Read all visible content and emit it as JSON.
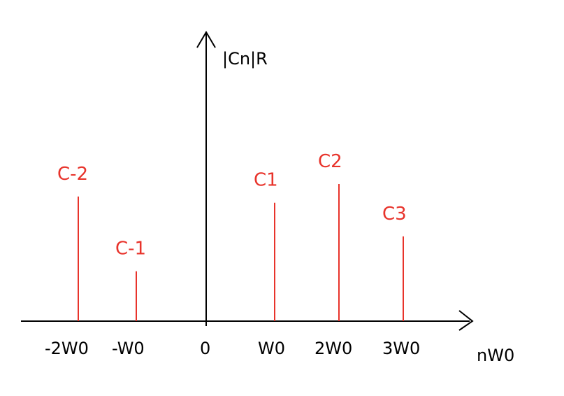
{
  "colors": {
    "axis": "#000000",
    "lines": "#e8332b"
  },
  "y_axis_label": "|Cn|R",
  "x_axis_label": "nW0",
  "chart_data": {
    "type": "bar",
    "title": "",
    "xlabel": "nW0",
    "ylabel": "|Cn|R",
    "categories": [
      "-2W0",
      "-W0",
      "0",
      "W0",
      "2W0",
      "3W0"
    ],
    "tick_labels": [
      "-2W0",
      "-W0",
      "0",
      "W0",
      "2W0",
      "3W0"
    ],
    "x": [
      -2,
      -1,
      0,
      1,
      2,
      3
    ],
    "series": [
      {
        "labels": [
          "C-2",
          "C-1",
          "",
          "C1",
          "C2",
          "C3"
        ],
        "values": [
          1.0,
          0.4,
          null,
          0.95,
          1.1,
          0.68
        ]
      }
    ],
    "ylim": [
      0,
      2.0
    ],
    "grid": false
  }
}
